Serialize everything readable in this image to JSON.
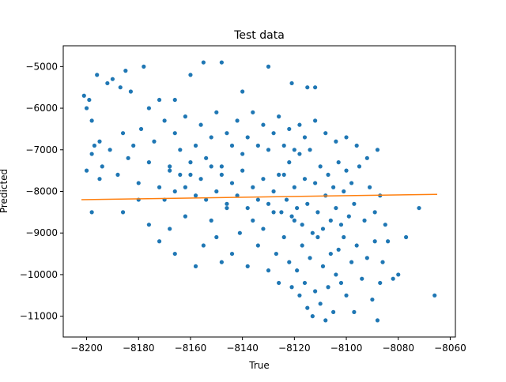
{
  "chart_data": {
    "type": "scatter",
    "title": "Test data",
    "xlabel": "True",
    "ylabel": "Predicted",
    "xlim": [
      -8209,
      -8058
    ],
    "ylim": [
      -11500,
      -4500
    ],
    "x_ticks": [
      -8200,
      -8180,
      -8160,
      -8140,
      -8120,
      -8100,
      -8080,
      -8060
    ],
    "y_ticks": [
      -11000,
      -10000,
      -9000,
      -8000,
      -7000,
      -6000,
      -5000
    ],
    "x_tick_labels": [
      "−8200",
      "−8180",
      "−8160",
      "−8140",
      "−8120",
      "−8100",
      "−8080",
      "−8060"
    ],
    "y_tick_labels": [
      "−11000",
      "−10000",
      "−9000",
      "−8000",
      "−7000",
      "−6000",
      "−5000"
    ],
    "grid": false,
    "legend": "none",
    "series": [
      {
        "kind": "scatter",
        "color": "#1f77b4",
        "points": [
          [
            -8201,
            -5700
          ],
          [
            -8200,
            -6000
          ],
          [
            -8199,
            -5800
          ],
          [
            -8198,
            -6300
          ],
          [
            -8196,
            -5200
          ],
          [
            -8197,
            -6900
          ],
          [
            -8195,
            -6800
          ],
          [
            -8192,
            -5400
          ],
          [
            -8190,
            -5300
          ],
          [
            -8187,
            -5500
          ],
          [
            -8185,
            -5100
          ],
          [
            -8183,
            -5600
          ],
          [
            -8178,
            -5000
          ],
          [
            -8176,
            -6000
          ],
          [
            -8172,
            -5800
          ],
          [
            -8166,
            -5800
          ],
          [
            -8160,
            -5200
          ],
          [
            -8155,
            -4900
          ],
          [
            -8148,
            -4900
          ],
          [
            -8140,
            -5600
          ],
          [
            -8130,
            -5000
          ],
          [
            -8121,
            -5400
          ],
          [
            -8115,
            -5500
          ],
          [
            -8112,
            -5500
          ],
          [
            -8200,
            -7500
          ],
          [
            -8198,
            -7100
          ],
          [
            -8195,
            -7700
          ],
          [
            -8194,
            -7400
          ],
          [
            -8191,
            -7000
          ],
          [
            -8188,
            -7600
          ],
          [
            -8186,
            -6600
          ],
          [
            -8184,
            -7200
          ],
          [
            -8182,
            -6900
          ],
          [
            -8180,
            -7800
          ],
          [
            -8179,
            -6500
          ],
          [
            -8176,
            -7300
          ],
          [
            -8174,
            -6800
          ],
          [
            -8172,
            -7900
          ],
          [
            -8170,
            -6300
          ],
          [
            -8168,
            -7500
          ],
          [
            -8166,
            -6600
          ],
          [
            -8164,
            -7000
          ],
          [
            -8162,
            -6200
          ],
          [
            -8160,
            -7600
          ],
          [
            -8158,
            -6900
          ],
          [
            -8156,
            -6400
          ],
          [
            -8154,
            -7200
          ],
          [
            -8152,
            -6700
          ],
          [
            -8150,
            -6100
          ],
          [
            -8148,
            -7400
          ],
          [
            -8146,
            -6600
          ],
          [
            -8144,
            -6900
          ],
          [
            -8142,
            -6300
          ],
          [
            -8140,
            -7100
          ],
          [
            -8138,
            -6700
          ],
          [
            -8136,
            -6100
          ],
          [
            -8134,
            -6900
          ],
          [
            -8132,
            -6400
          ],
          [
            -8130,
            -7000
          ],
          [
            -8128,
            -6600
          ],
          [
            -8126,
            -6200
          ],
          [
            -8124,
            -6900
          ],
          [
            -8122,
            -6500
          ],
          [
            -8120,
            -7000
          ],
          [
            -8118,
            -6400
          ],
          [
            -8116,
            -6700
          ],
          [
            -8112,
            -6300
          ],
          [
            -8108,
            -6600
          ],
          [
            -8104,
            -6800
          ],
          [
            -8100,
            -6700
          ],
          [
            -8096,
            -6900
          ],
          [
            -8092,
            -7200
          ],
          [
            -8088,
            -7000
          ],
          [
            -8198,
            -8500
          ],
          [
            -8186,
            -8500
          ],
          [
            -8180,
            -8200
          ],
          [
            -8176,
            -8800
          ],
          [
            -8172,
            -9200
          ],
          [
            -8168,
            -8900
          ],
          [
            -8166,
            -9500
          ],
          [
            -8162,
            -8600
          ],
          [
            -8158,
            -9800
          ],
          [
            -8155,
            -9300
          ],
          [
            -8152,
            -8700
          ],
          [
            -8150,
            -9100
          ],
          [
            -8148,
            -9700
          ],
          [
            -8146,
            -8400
          ],
          [
            -8144,
            -9500
          ],
          [
            -8141,
            -9000
          ],
          [
            -8138,
            -9800
          ],
          [
            -8136,
            -8700
          ],
          [
            -8134,
            -9300
          ],
          [
            -8132,
            -8900
          ],
          [
            -8130,
            -9900
          ],
          [
            -8128,
            -8500
          ],
          [
            -8127,
            -9500
          ],
          [
            -8126,
            -10200
          ],
          [
            -8124,
            -9100
          ],
          [
            -8122,
            -9700
          ],
          [
            -8121,
            -10300
          ],
          [
            -8120,
            -8700
          ],
          [
            -8119,
            -9900
          ],
          [
            -8118,
            -10500
          ],
          [
            -8117,
            -9300
          ],
          [
            -8116,
            -10200
          ],
          [
            -8115,
            -10800
          ],
          [
            -8114,
            -9600
          ],
          [
            -8113,
            -11000
          ],
          [
            -8112,
            -10400
          ],
          [
            -8111,
            -9100
          ],
          [
            -8110,
            -10700
          ],
          [
            -8109,
            -9800
          ],
          [
            -8108,
            -11100
          ],
          [
            -8107,
            -10300
          ],
          [
            -8106,
            -9500
          ],
          [
            -8105,
            -10900
          ],
          [
            -8104,
            -10000
          ],
          [
            -8103,
            -9400
          ],
          [
            -8102,
            -10200
          ],
          [
            -8101,
            -9100
          ],
          [
            -8100,
            -10500
          ],
          [
            -8098,
            -9700
          ],
          [
            -8097,
            -10900
          ],
          [
            -8096,
            -9300
          ],
          [
            -8094,
            -10100
          ],
          [
            -8092,
            -9600
          ],
          [
            -8090,
            -10600
          ],
          [
            -8089,
            -9200
          ],
          [
            -8088,
            -11100
          ],
          [
            -8087,
            -10200
          ],
          [
            -8086,
            -9700
          ],
          [
            -8084,
            -9200
          ],
          [
            -8082,
            -10100
          ],
          [
            -8080,
            -10000
          ],
          [
            -8077,
            -9100
          ],
          [
            -8072,
            -8400
          ],
          [
            -8066,
            -10500
          ],
          [
            -8124,
            -7600
          ],
          [
            -8123,
            -8200
          ],
          [
            -8122,
            -7300
          ],
          [
            -8121,
            -8600
          ],
          [
            -8120,
            -7900
          ],
          [
            -8119,
            -8400
          ],
          [
            -8118,
            -7100
          ],
          [
            -8117,
            -8800
          ],
          [
            -8116,
            -7700
          ],
          [
            -8115,
            -8300
          ],
          [
            -8114,
            -7000
          ],
          [
            -8113,
            -9000
          ],
          [
            -8112,
            -7800
          ],
          [
            -8111,
            -8500
          ],
          [
            -8110,
            -7400
          ],
          [
            -8109,
            -8900
          ],
          [
            -8108,
            -8100
          ],
          [
            -8107,
            -7600
          ],
          [
            -8106,
            -8700
          ],
          [
            -8105,
            -7900
          ],
          [
            -8104,
            -8400
          ],
          [
            -8103,
            -7300
          ],
          [
            -8102,
            -8800
          ],
          [
            -8101,
            -8000
          ],
          [
            -8100,
            -7500
          ],
          [
            -8099,
            -8600
          ],
          [
            -8098,
            -7800
          ],
          [
            -8097,
            -8300
          ],
          [
            -8095,
            -7400
          ],
          [
            -8093,
            -8700
          ],
          [
            -8091,
            -7900
          ],
          [
            -8089,
            -8500
          ],
          [
            -8087,
            -8100
          ],
          [
            -8085,
            -8800
          ],
          [
            -8128,
            -8000
          ],
          [
            -8126,
            -7600
          ],
          [
            -8125,
            -8500
          ],
          [
            -8130,
            -8300
          ],
          [
            -8132,
            -7700
          ],
          [
            -8134,
            -8200
          ],
          [
            -8136,
            -7900
          ],
          [
            -8138,
            -8400
          ],
          [
            -8140,
            -7500
          ],
          [
            -8142,
            -8100
          ],
          [
            -8144,
            -7800
          ],
          [
            -8146,
            -8300
          ],
          [
            -8148,
            -7600
          ],
          [
            -8150,
            -8000
          ],
          [
            -8152,
            -7400
          ],
          [
            -8154,
            -8200
          ],
          [
            -8156,
            -7700
          ],
          [
            -8158,
            -8100
          ],
          [
            -8160,
            -7300
          ],
          [
            -8162,
            -7900
          ],
          [
            -8164,
            -7600
          ],
          [
            -8166,
            -8000
          ],
          [
            -8168,
            -7400
          ],
          [
            -8170,
            -8200
          ]
        ]
      },
      {
        "kind": "line",
        "color": "#ff7f0e",
        "x": [
          -8202,
          -8065
        ],
        "y": [
          -8200,
          -8070
        ]
      }
    ]
  }
}
